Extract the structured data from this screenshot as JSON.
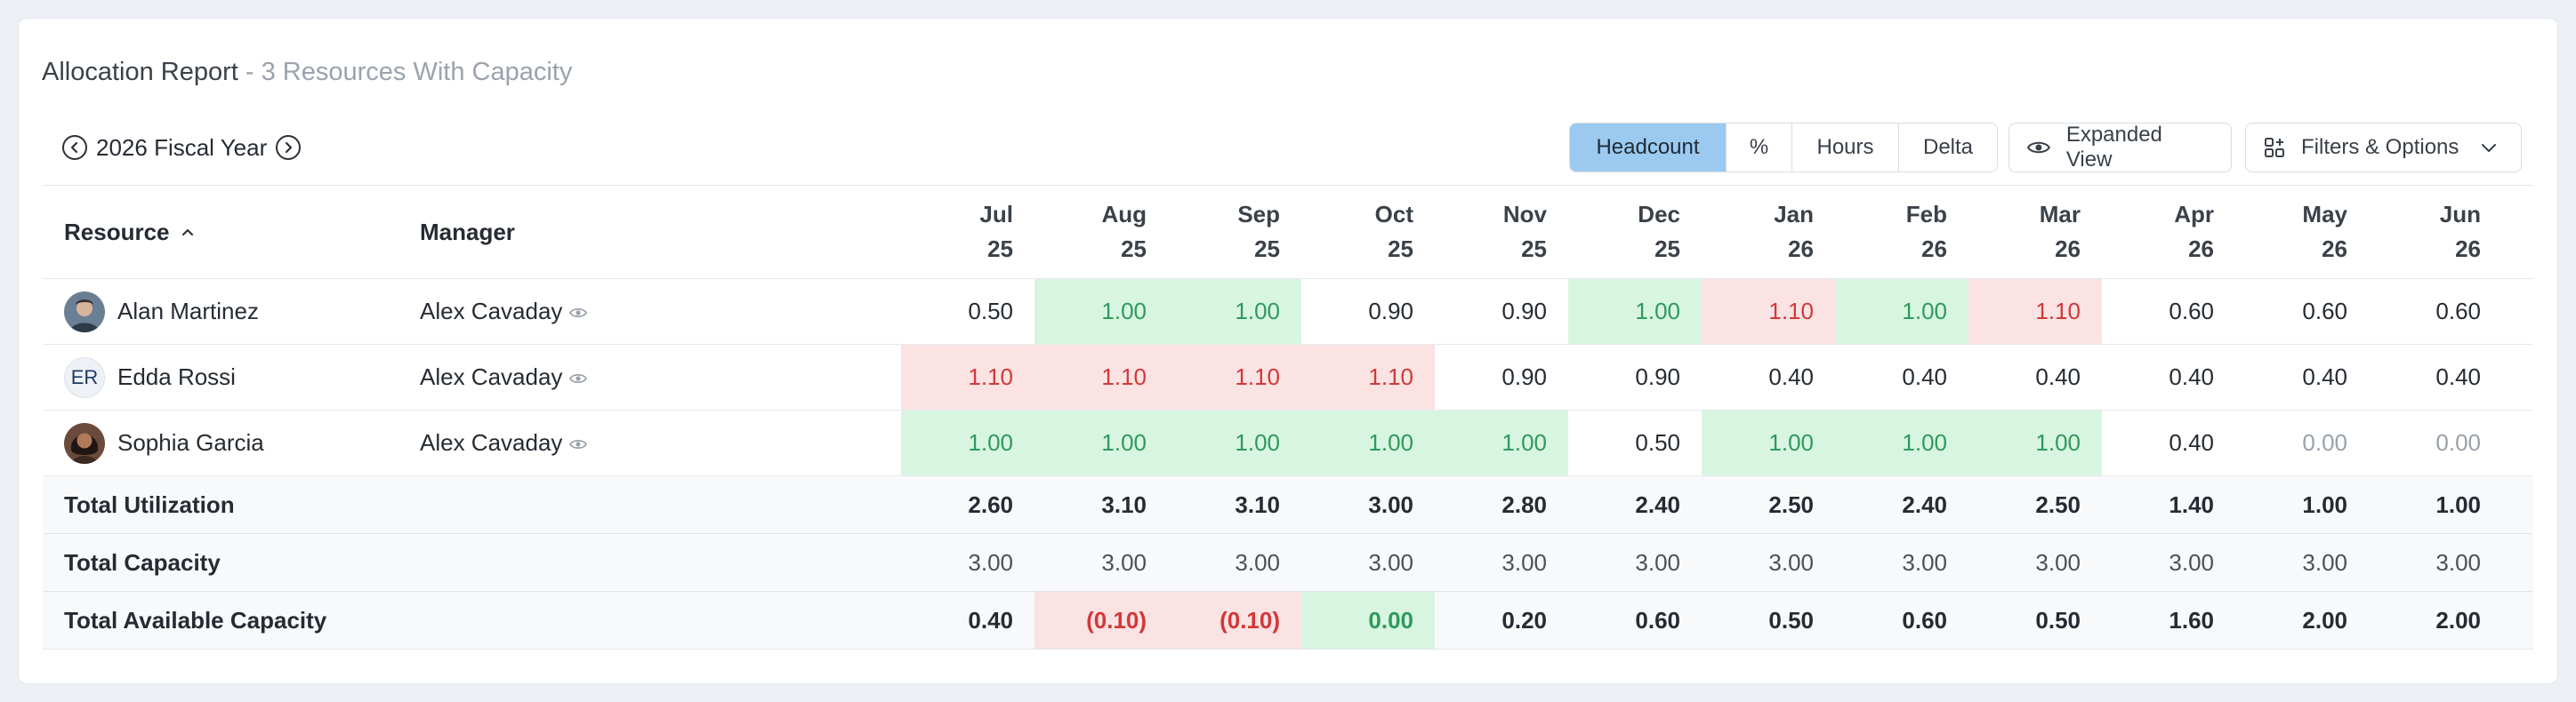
{
  "report": {
    "title": "Allocation Report",
    "subtitle": " - 3 Resources With Capacity"
  },
  "toolbar": {
    "fiscal_year": "2026 Fiscal Year",
    "modes": [
      "Headcount",
      "%",
      "Hours",
      "Delta"
    ],
    "active_mode": "Headcount",
    "expanded_view_label": "Expanded View",
    "filters_label": "Filters & Options"
  },
  "table": {
    "headers": {
      "resource": "Resource",
      "manager": "Manager"
    },
    "months": [
      {
        "m": "Jul",
        "y": "25"
      },
      {
        "m": "Aug",
        "y": "25"
      },
      {
        "m": "Sep",
        "y": "25"
      },
      {
        "m": "Oct",
        "y": "25"
      },
      {
        "m": "Nov",
        "y": "25"
      },
      {
        "m": "Dec",
        "y": "25"
      },
      {
        "m": "Jan",
        "y": "26"
      },
      {
        "m": "Feb",
        "y": "26"
      },
      {
        "m": "Mar",
        "y": "26"
      },
      {
        "m": "Apr",
        "y": "26"
      },
      {
        "m": "May",
        "y": "26"
      },
      {
        "m": "Jun",
        "y": "26"
      }
    ],
    "rows": [
      {
        "name": "Alan Martinez",
        "manager": "Alex Cavaday",
        "avatar": "photo",
        "values": [
          "0.50",
          "1.00",
          "1.00",
          "0.90",
          "0.90",
          "1.00",
          "1.10",
          "1.00",
          "1.10",
          "0.60",
          "0.60",
          "0.60"
        ],
        "status": [
          "n",
          "g",
          "g",
          "n",
          "n",
          "g",
          "r",
          "g",
          "r",
          "n",
          "n",
          "n"
        ]
      },
      {
        "name": "Edda Rossi",
        "manager": "Alex Cavaday",
        "avatar": "ER",
        "values": [
          "1.10",
          "1.10",
          "1.10",
          "1.10",
          "0.90",
          "0.90",
          "0.40",
          "0.40",
          "0.40",
          "0.40",
          "0.40",
          "0.40"
        ],
        "status": [
          "r",
          "r",
          "r",
          "r",
          "n",
          "n",
          "n",
          "n",
          "n",
          "n",
          "n",
          "n"
        ]
      },
      {
        "name": "Sophia Garcia",
        "manager": "Alex Cavaday",
        "avatar": "photo",
        "values": [
          "1.00",
          "1.00",
          "1.00",
          "1.00",
          "1.00",
          "0.50",
          "1.00",
          "1.00",
          "1.00",
          "0.40",
          "0.00",
          "0.00"
        ],
        "status": [
          "g",
          "g",
          "g",
          "g",
          "g",
          "n",
          "g",
          "g",
          "g",
          "n",
          "m",
          "m"
        ]
      }
    ],
    "totals": [
      {
        "label": "Total Utilization",
        "bold": true,
        "values": [
          "2.60",
          "3.10",
          "3.10",
          "3.00",
          "2.80",
          "2.40",
          "2.50",
          "2.40",
          "2.50",
          "1.40",
          "1.00",
          "1.00"
        ],
        "status": [
          "n",
          "n",
          "n",
          "n",
          "n",
          "n",
          "n",
          "n",
          "n",
          "n",
          "n",
          "n"
        ]
      },
      {
        "label": "Total Capacity",
        "bold": false,
        "values": [
          "3.00",
          "3.00",
          "3.00",
          "3.00",
          "3.00",
          "3.00",
          "3.00",
          "3.00",
          "3.00",
          "3.00",
          "3.00",
          "3.00"
        ],
        "status": [
          "n",
          "n",
          "n",
          "n",
          "n",
          "n",
          "n",
          "n",
          "n",
          "n",
          "n",
          "n"
        ]
      },
      {
        "label": "Total Available Capacity",
        "bold": true,
        "values": [
          "0.40",
          "(0.10)",
          "(0.10)",
          "0.00",
          "0.20",
          "0.60",
          "0.50",
          "0.60",
          "0.50",
          "1.60",
          "2.00",
          "2.00"
        ],
        "status": [
          "n",
          "r",
          "r",
          "g",
          "n",
          "n",
          "n",
          "n",
          "n",
          "n",
          "n",
          "n"
        ]
      }
    ]
  },
  "colors": {
    "over_bg": "#fbe2e3",
    "over_text": "#d23838",
    "full_bg": "#d8f5e2",
    "full_text": "#2f9a5b",
    "active_mode_bg": "#9bc9ef"
  }
}
